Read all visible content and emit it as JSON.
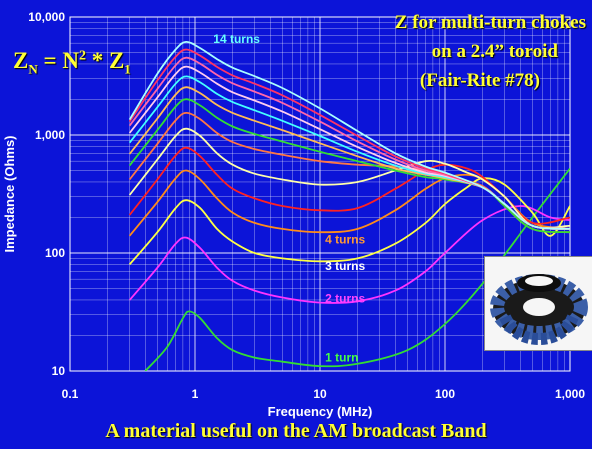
{
  "chart_data": {
    "type": "line",
    "title_lines": [
      "Z for multi-turn chokes",
      "on  a 2.4” toroid",
      "(Fair-Rite #78)"
    ],
    "formula": {
      "lhs": "Z",
      "lhs_sub": "N",
      "eq": " = N",
      "exp": "2",
      "mul": " * Z",
      "rhs_sub": "1"
    },
    "xlabel": "Frequency  (MHz)",
    "ylabel": "Impedance  (Ohms)",
    "xscale": "log",
    "yscale": "log",
    "xlim": [
      0.1,
      1000
    ],
    "ylim": [
      10,
      10000
    ],
    "grid": true,
    "x_ticks": [
      "0.1",
      "1",
      "10",
      "100",
      "1,000"
    ],
    "y_ticks": [
      "10",
      "100",
      "1,000",
      "10,000"
    ],
    "footer": "A material useful on the AM broadcast Band",
    "annotations": [
      {
        "text": "14 turns",
        "x": 1.4,
        "y": 6000,
        "color": "#66ffff"
      },
      {
        "text": "4 turns",
        "x": 11,
        "y": 120,
        "color": "#ff9933"
      },
      {
        "text": "3 turns",
        "x": 11,
        "y": 72,
        "color": "#ffffff"
      },
      {
        "text": "2 turns",
        "x": 11,
        "y": 38,
        "color": "#ff44ff"
      },
      {
        "text": "1 turn",
        "x": 11,
        "y": 12,
        "color": "#44ff44"
      }
    ],
    "series": [
      {
        "turns": 1,
        "color": "#33dd33",
        "points": [
          [
            0.4,
            10
          ],
          [
            0.6,
            16
          ],
          [
            0.8,
            28
          ],
          [
            0.9,
            32
          ],
          [
            1.1,
            28
          ],
          [
            1.5,
            19
          ],
          [
            2,
            15
          ],
          [
            3,
            13
          ],
          [
            5,
            12
          ],
          [
            10,
            11
          ],
          [
            20,
            11.5
          ],
          [
            50,
            15
          ],
          [
            100,
            25
          ],
          [
            200,
            55
          ],
          [
            500,
            200
          ],
          [
            1000,
            520
          ]
        ]
      },
      {
        "turns": 2,
        "color": "#ff33ff",
        "points": [
          [
            0.3,
            40
          ],
          [
            0.5,
            75
          ],
          [
            0.7,
            120
          ],
          [
            0.85,
            135
          ],
          [
            1.1,
            110
          ],
          [
            1.5,
            75
          ],
          [
            2,
            58
          ],
          [
            3,
            48
          ],
          [
            5,
            42
          ],
          [
            10,
            38
          ],
          [
            20,
            39
          ],
          [
            40,
            48
          ],
          [
            70,
            70
          ],
          [
            100,
            100
          ],
          [
            200,
            190
          ],
          [
            400,
            250
          ],
          [
            700,
            200
          ],
          [
            1000,
            190
          ]
        ]
      },
      {
        "turns": 3,
        "color": "#ffff44",
        "points": [
          [
            0.3,
            80
          ],
          [
            0.5,
            150
          ],
          [
            0.7,
            240
          ],
          [
            0.85,
            280
          ],
          [
            1.1,
            240
          ],
          [
            1.5,
            160
          ],
          [
            2,
            125
          ],
          [
            3,
            100
          ],
          [
            5,
            90
          ],
          [
            10,
            85
          ],
          [
            20,
            90
          ],
          [
            40,
            120
          ],
          [
            70,
            180
          ],
          [
            100,
            260
          ],
          [
            150,
            360
          ],
          [
            200,
            430
          ],
          [
            300,
            380
          ],
          [
            500,
            220
          ],
          [
            700,
            140
          ],
          [
            1000,
            250
          ]
        ]
      },
      {
        "turns": 4,
        "color": "#ff8c1a",
        "points": [
          [
            0.3,
            140
          ],
          [
            0.5,
            270
          ],
          [
            0.7,
            430
          ],
          [
            0.85,
            500
          ],
          [
            1.1,
            420
          ],
          [
            1.5,
            290
          ],
          [
            2,
            220
          ],
          [
            3,
            180
          ],
          [
            5,
            160
          ],
          [
            10,
            150
          ],
          [
            20,
            160
          ],
          [
            40,
            230
          ],
          [
            70,
            350
          ],
          [
            100,
            430
          ],
          [
            150,
            460
          ],
          [
            200,
            420
          ],
          [
            300,
            300
          ],
          [
            500,
            180
          ],
          [
            1000,
            160
          ]
        ]
      },
      {
        "turns": 5,
        "color": "#ff2222",
        "points": [
          [
            0.3,
            210
          ],
          [
            0.5,
            420
          ],
          [
            0.7,
            670
          ],
          [
            0.85,
            780
          ],
          [
            1.1,
            660
          ],
          [
            1.5,
            460
          ],
          [
            2,
            350
          ],
          [
            3,
            290
          ],
          [
            5,
            250
          ],
          [
            10,
            230
          ],
          [
            20,
            240
          ],
          [
            40,
            350
          ],
          [
            70,
            500
          ],
          [
            100,
            560
          ],
          [
            150,
            520
          ],
          [
            200,
            440
          ],
          [
            300,
            300
          ],
          [
            500,
            180
          ],
          [
            1000,
            200
          ]
        ]
      },
      {
        "turns": 6,
        "color": "#ffffaa",
        "points": [
          [
            0.3,
            310
          ],
          [
            0.5,
            620
          ],
          [
            0.7,
            980
          ],
          [
            0.85,
            1130
          ],
          [
            1.1,
            980
          ],
          [
            1.5,
            700
          ],
          [
            2,
            560
          ],
          [
            3,
            470
          ],
          [
            5,
            420
          ],
          [
            10,
            380
          ],
          [
            20,
            400
          ],
          [
            40,
            500
          ],
          [
            70,
            600
          ],
          [
            100,
            570
          ],
          [
            150,
            480
          ],
          [
            200,
            420
          ],
          [
            300,
            300
          ],
          [
            500,
            170
          ],
          [
            1000,
            170
          ]
        ]
      },
      {
        "turns": 7,
        "color": "#ff7744",
        "points": [
          [
            0.3,
            420
          ],
          [
            0.5,
            840
          ],
          [
            0.7,
            1330
          ],
          [
            0.85,
            1540
          ],
          [
            1.1,
            1360
          ],
          [
            1.5,
            1040
          ],
          [
            2,
            870
          ],
          [
            3,
            760
          ],
          [
            5,
            680
          ],
          [
            10,
            600
          ],
          [
            20,
            560
          ],
          [
            40,
            540
          ],
          [
            70,
            500
          ],
          [
            100,
            450
          ],
          [
            200,
            370
          ],
          [
            300,
            250
          ],
          [
            500,
            160
          ],
          [
            1000,
            150
          ]
        ]
      },
      {
        "turns": 8,
        "color": "#33dd33",
        "points": [
          [
            0.3,
            550
          ],
          [
            0.5,
            1100
          ],
          [
            0.7,
            1740
          ],
          [
            0.85,
            2010
          ],
          [
            1.1,
            1780
          ],
          [
            1.5,
            1400
          ],
          [
            2,
            1180
          ],
          [
            3,
            1020
          ],
          [
            5,
            880
          ],
          [
            10,
            720
          ],
          [
            20,
            600
          ],
          [
            40,
            500
          ],
          [
            70,
            440
          ],
          [
            100,
            420
          ],
          [
            200,
            360
          ],
          [
            300,
            250
          ],
          [
            500,
            160
          ],
          [
            1000,
            150
          ]
        ]
      },
      {
        "turns": 9,
        "color": "#ffbb55",
        "points": [
          [
            0.3,
            690
          ],
          [
            0.5,
            1380
          ],
          [
            0.7,
            2200
          ],
          [
            0.85,
            2540
          ],
          [
            1.1,
            2260
          ],
          [
            1.5,
            1800
          ],
          [
            2,
            1540
          ],
          [
            3,
            1320
          ],
          [
            5,
            1100
          ],
          [
            10,
            850
          ],
          [
            20,
            660
          ],
          [
            40,
            520
          ],
          [
            70,
            460
          ],
          [
            100,
            430
          ],
          [
            200,
            360
          ],
          [
            300,
            260
          ],
          [
            500,
            170
          ],
          [
            1000,
            160
          ]
        ]
      },
      {
        "turns": 10,
        "color": "#44ffff",
        "points": [
          [
            0.3,
            860
          ],
          [
            0.5,
            1720
          ],
          [
            0.7,
            2720
          ],
          [
            0.85,
            3140
          ],
          [
            1.1,
            2790
          ],
          [
            1.5,
            2230
          ],
          [
            2,
            1900
          ],
          [
            3,
            1620
          ],
          [
            5,
            1320
          ],
          [
            10,
            980
          ],
          [
            20,
            720
          ],
          [
            40,
            550
          ],
          [
            70,
            470
          ],
          [
            100,
            440
          ],
          [
            200,
            360
          ],
          [
            300,
            260
          ],
          [
            500,
            170
          ],
          [
            1000,
            160
          ]
        ]
      },
      {
        "turns": 11,
        "color": "#ffccee",
        "points": [
          [
            0.3,
            1040
          ],
          [
            0.5,
            2080
          ],
          [
            0.7,
            3290
          ],
          [
            0.85,
            3800
          ],
          [
            1.1,
            3380
          ],
          [
            1.5,
            2720
          ],
          [
            2,
            2300
          ],
          [
            3,
            1960
          ],
          [
            5,
            1580
          ],
          [
            10,
            1120
          ],
          [
            20,
            790
          ],
          [
            40,
            580
          ],
          [
            70,
            480
          ],
          [
            100,
            450
          ],
          [
            200,
            360
          ],
          [
            300,
            260
          ],
          [
            500,
            170
          ],
          [
            1000,
            160
          ]
        ]
      },
      {
        "turns": 12,
        "color": "#ff66aa",
        "points": [
          [
            0.3,
            1200
          ],
          [
            0.5,
            2460
          ],
          [
            0.7,
            3900
          ],
          [
            0.85,
            4520
          ],
          [
            1.1,
            4020
          ],
          [
            1.5,
            3230
          ],
          [
            2,
            2740
          ],
          [
            3,
            2330
          ],
          [
            5,
            1870
          ],
          [
            10,
            1300
          ],
          [
            20,
            880
          ],
          [
            40,
            620
          ],
          [
            70,
            500
          ],
          [
            100,
            460
          ],
          [
            200,
            360
          ],
          [
            300,
            260
          ],
          [
            500,
            170
          ],
          [
            1000,
            160
          ]
        ]
      },
      {
        "turns": 13,
        "color": "#ff3366",
        "points": [
          [
            0.3,
            1300
          ],
          [
            0.5,
            2900
          ],
          [
            0.7,
            4600
          ],
          [
            0.85,
            5300
          ],
          [
            1.1,
            4700
          ],
          [
            1.5,
            3780
          ],
          [
            2,
            3200
          ],
          [
            3,
            2720
          ],
          [
            5,
            2170
          ],
          [
            10,
            1480
          ],
          [
            20,
            980
          ],
          [
            40,
            660
          ],
          [
            70,
            520
          ],
          [
            100,
            470
          ],
          [
            200,
            360
          ],
          [
            300,
            260
          ],
          [
            500,
            170
          ],
          [
            1000,
            160
          ]
        ]
      },
      {
        "turns": 14,
        "color": "#aaffff",
        "points": [
          [
            0.3,
            1350
          ],
          [
            0.5,
            3300
          ],
          [
            0.7,
            5300
          ],
          [
            0.85,
            6150
          ],
          [
            1.1,
            5450
          ],
          [
            1.5,
            4400
          ],
          [
            2,
            3720
          ],
          [
            3,
            3150
          ],
          [
            5,
            2500
          ],
          [
            10,
            1680
          ],
          [
            20,
            1080
          ],
          [
            40,
            700
          ],
          [
            70,
            540
          ],
          [
            100,
            480
          ],
          [
            200,
            360
          ],
          [
            300,
            260
          ],
          [
            500,
            170
          ],
          [
            1000,
            160
          ]
        ]
      }
    ]
  },
  "photo": {
    "alt_icon": "toroid-choke-photo"
  }
}
